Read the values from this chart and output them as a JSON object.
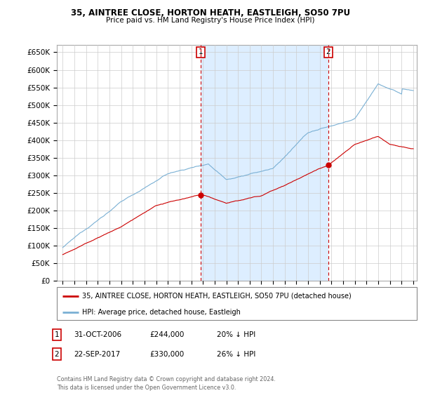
{
  "title1": "35, AINTREE CLOSE, HORTON HEATH, EASTLEIGH, SO50 7PU",
  "title2": "Price paid vs. HM Land Registry's House Price Index (HPI)",
  "ylim": [
    0,
    670000
  ],
  "yticks": [
    0,
    50000,
    100000,
    150000,
    200000,
    250000,
    300000,
    350000,
    400000,
    450000,
    500000,
    550000,
    600000,
    650000
  ],
  "sale1_date": 2006.83,
  "sale1_price": 244000,
  "sale2_date": 2017.72,
  "sale2_price": 330000,
  "legend_red": "35, AINTREE CLOSE, HORTON HEATH, EASTLEIGH, SO50 7PU (detached house)",
  "legend_blue": "HPI: Average price, detached house, Eastleigh",
  "footnote": "Contains HM Land Registry data © Crown copyright and database right 2024.\nThis data is licensed under the Open Government Licence v3.0.",
  "red_color": "#cc0000",
  "blue_color": "#7ab0d4",
  "fill_color": "#ddeeff",
  "vline_color": "#cc0000",
  "grid_color": "#cccccc",
  "ann1_date": "31-OCT-2006",
  "ann1_price": "£244,000",
  "ann1_pct": "20% ↓ HPI",
  "ann2_date": "22-SEP-2017",
  "ann2_price": "£330,000",
  "ann2_pct": "26% ↓ HPI"
}
